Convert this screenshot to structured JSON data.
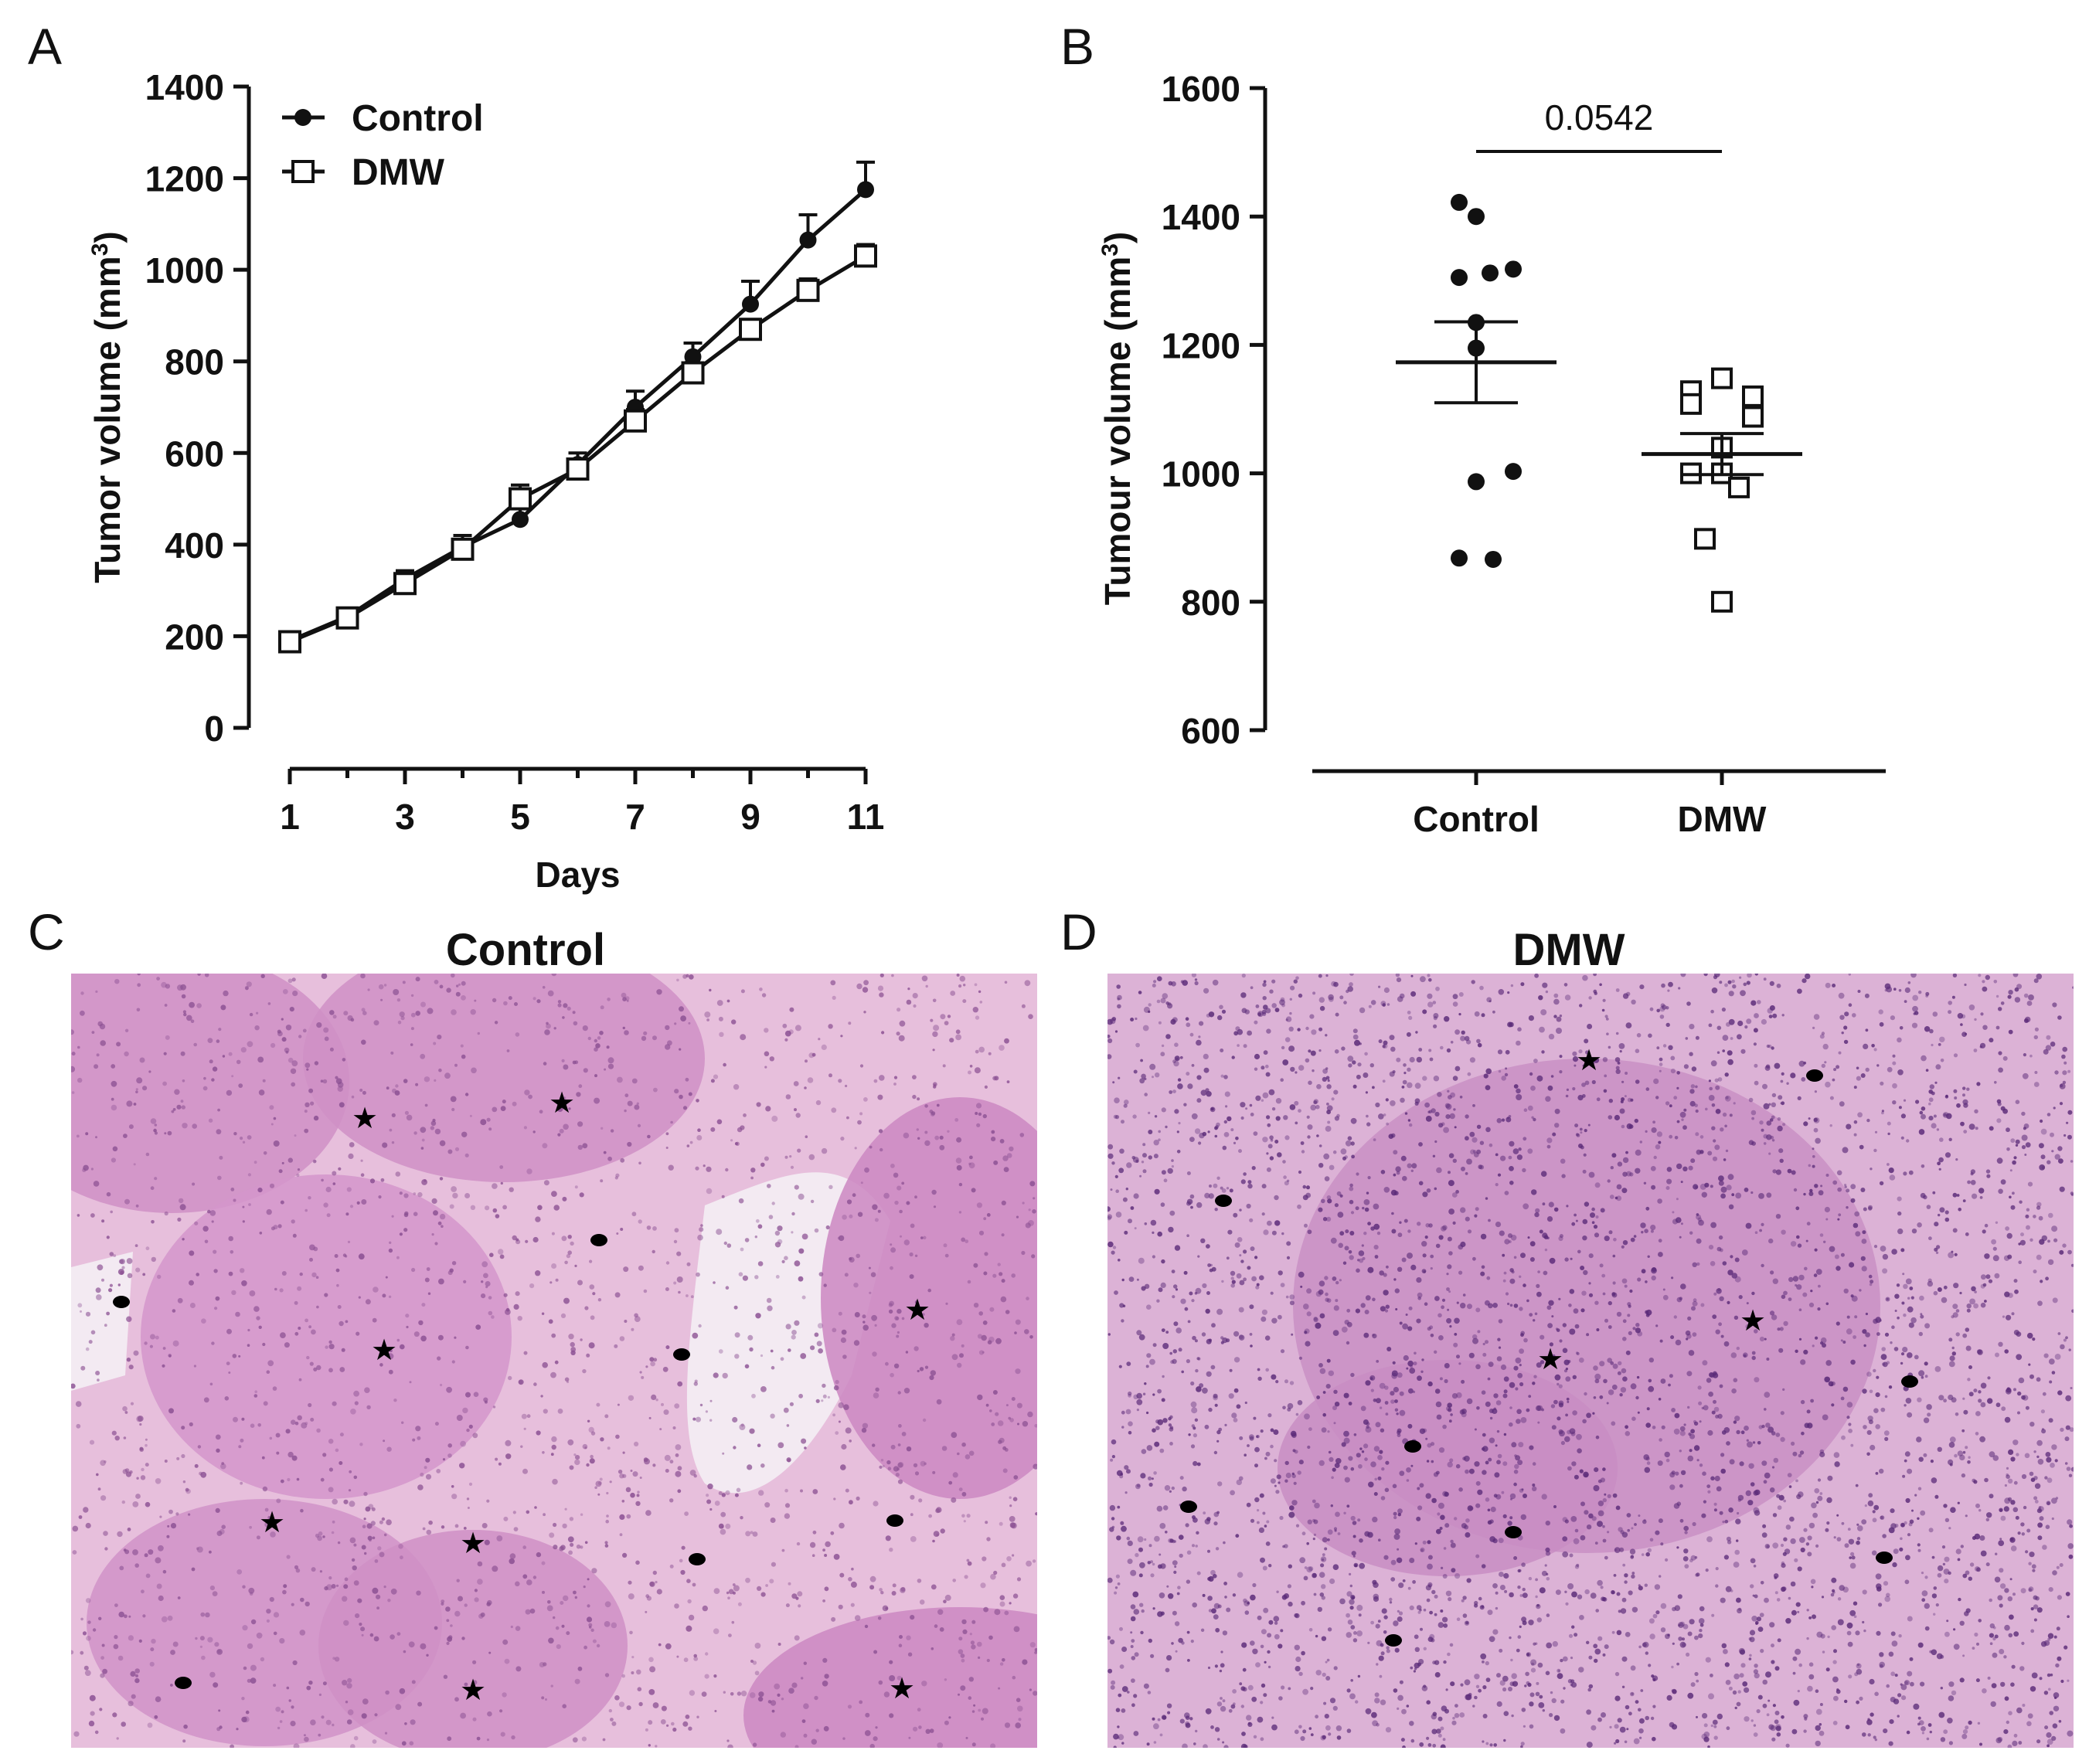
{
  "panels": {
    "a": {
      "letter": "A"
    },
    "b": {
      "letter": "B"
    },
    "c": {
      "letter": "C",
      "title": "Control"
    },
    "d": {
      "letter": "D",
      "title": "DMW"
    }
  },
  "chart_data": [
    {
      "panel": "A",
      "type": "line",
      "xlabel": "Days",
      "ylabel": "Tumor volume (mm",
      "ylabel_sup": "3",
      "ylabel_end": ")",
      "x": [
        1,
        2,
        3,
        4,
        5,
        6,
        7,
        8,
        9,
        10,
        11
      ],
      "xticks": [
        "1",
        "3",
        "5",
        "7",
        "9",
        "11"
      ],
      "xtick_values": [
        1,
        3,
        5,
        7,
        9,
        11
      ],
      "yticks": [
        "0",
        "200",
        "400",
        "600",
        "800",
        "1000",
        "1200",
        "1400"
      ],
      "ylim": [
        0,
        1400
      ],
      "xlim": [
        1,
        11
      ],
      "legend_position": "top-left",
      "series": [
        {
          "name": "Control",
          "marker": "filled-circle",
          "values": [
            190,
            243,
            325,
            395,
            455,
            575,
            700,
            810,
            925,
            1065,
            1175
          ],
          "error": [
            10,
            12,
            18,
            25,
            25,
            25,
            35,
            30,
            50,
            55,
            60
          ]
        },
        {
          "name": "DMW",
          "marker": "open-square",
          "values": [
            188,
            240,
            315,
            390,
            500,
            565,
            670,
            775,
            870,
            955,
            1030
          ],
          "error": [
            8,
            10,
            15,
            15,
            30,
            20,
            25,
            20,
            15,
            25,
            25
          ]
        }
      ]
    },
    {
      "panel": "B",
      "type": "scatter",
      "ylabel": "Tumour volume (mm",
      "ylabel_sup": "3",
      "ylabel_end": ")",
      "categories": [
        "Control",
        "DMW"
      ],
      "yticks": [
        "600",
        "800",
        "1000",
        "1200",
        "1400",
        "1600"
      ],
      "ylim": [
        600,
        1600
      ],
      "annotation": "0.0542",
      "groups": [
        {
          "name": "Control",
          "marker": "filled-circle",
          "points": [
            1422,
            1400,
            1305,
            1312,
            1318,
            1235,
            1195,
            1003,
            987,
            868,
            866
          ],
          "mean": 1173,
          "sem": 63
        },
        {
          "name": "DMW",
          "marker": "open-square",
          "points": [
            1148,
            1128,
            1120,
            1108,
            1088,
            1040,
            1000,
            1000,
            978,
            898,
            800
          ],
          "mean": 1030,
          "sem": 32
        }
      ]
    }
  ]
}
